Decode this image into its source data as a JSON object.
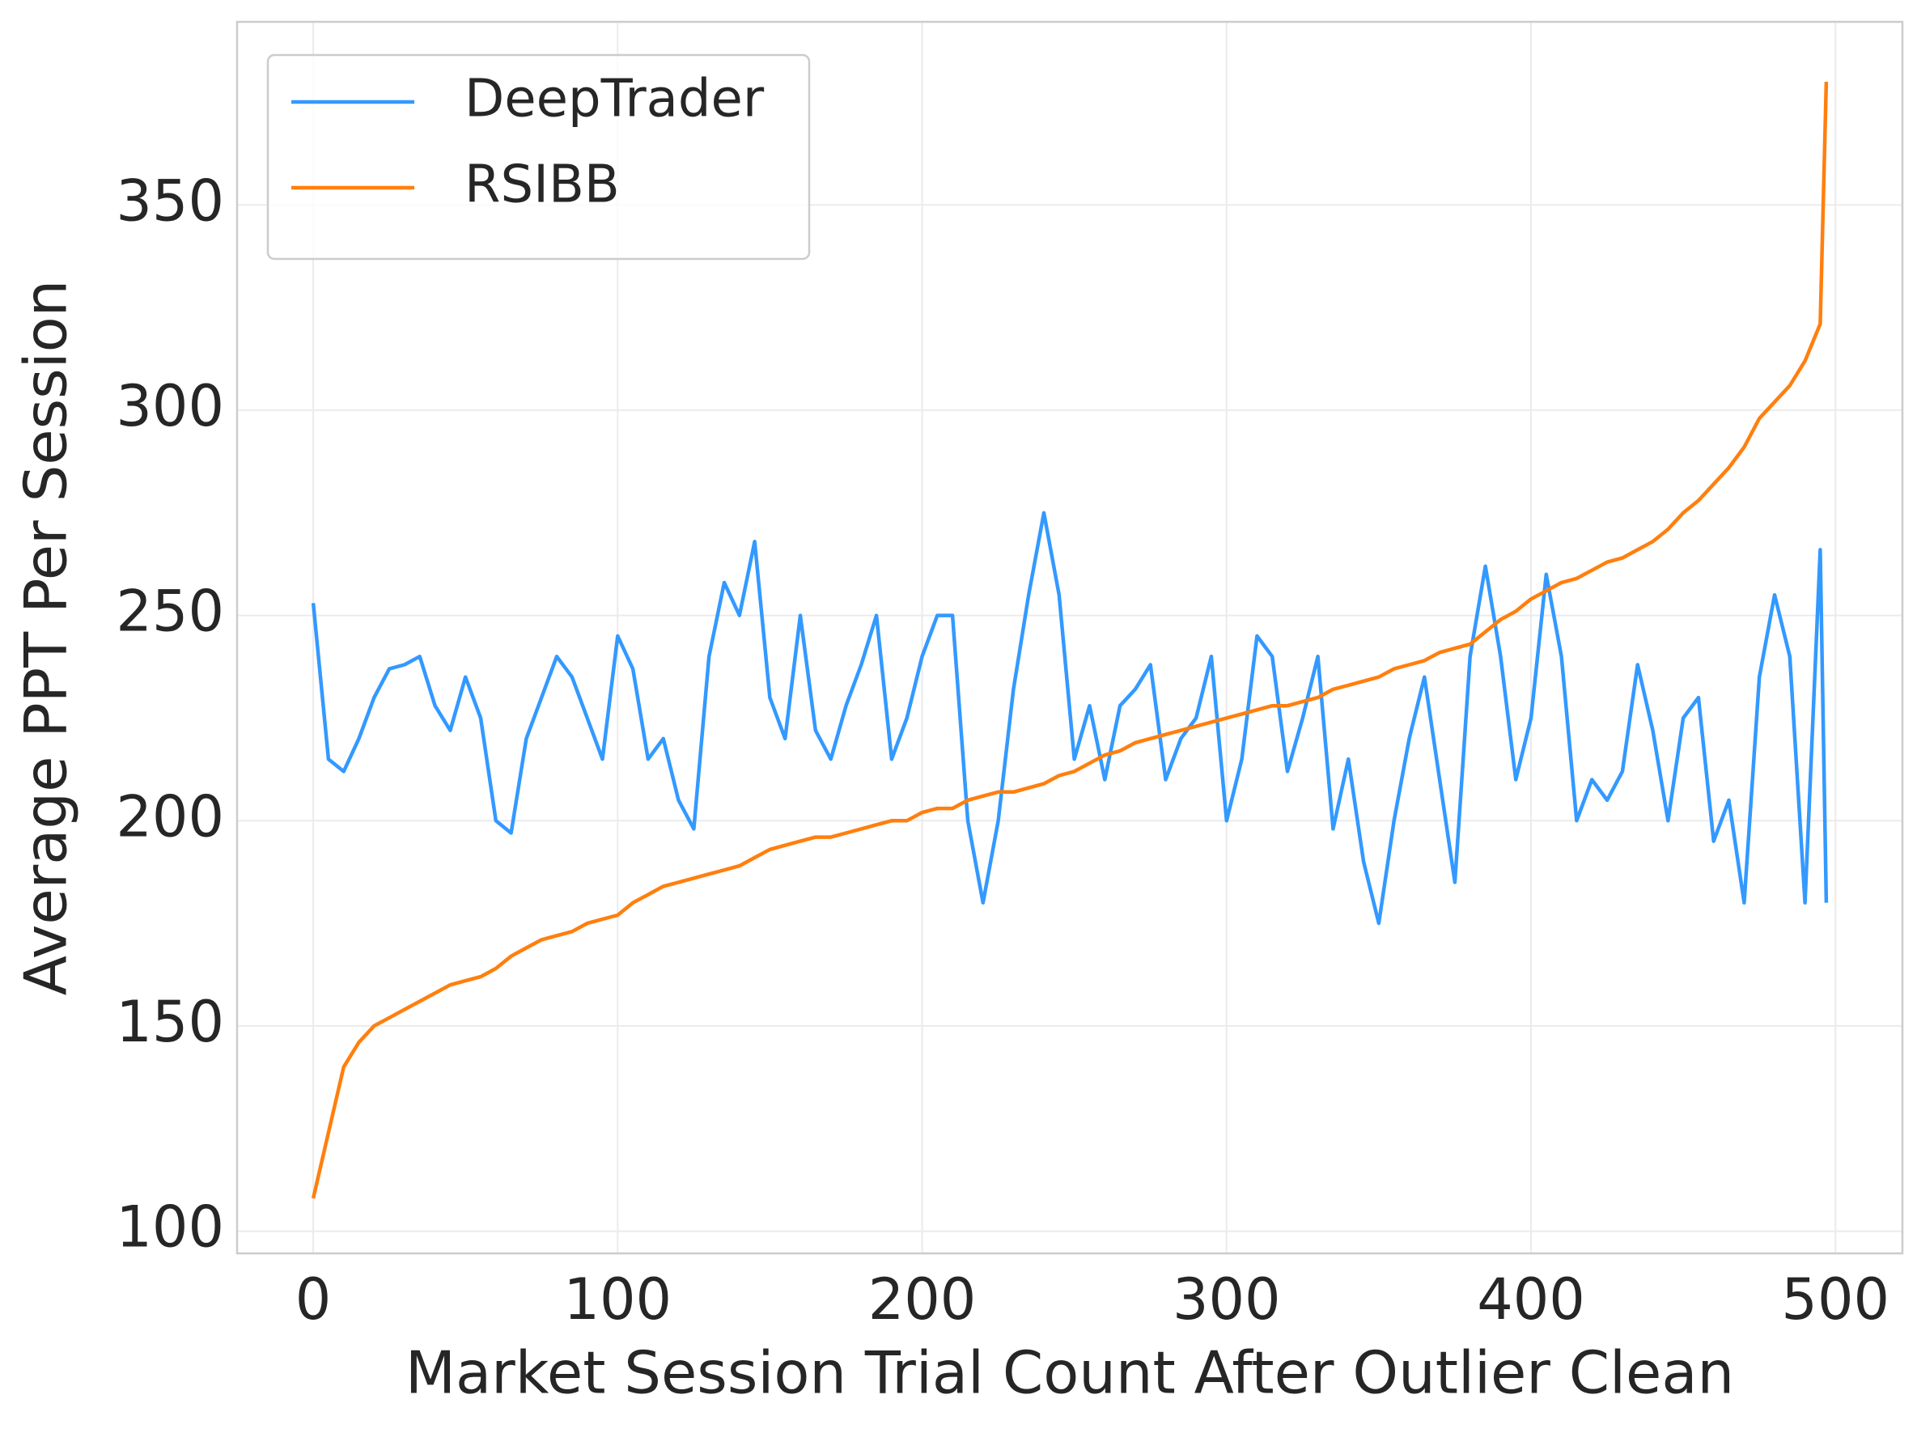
{
  "chart_data": {
    "type": "line",
    "xlabel": "Market Session Trial Count After Outlier Clean",
    "ylabel": "Average PPT Per Session",
    "x": [
      0,
      5,
      10,
      15,
      20,
      25,
      30,
      35,
      40,
      45,
      50,
      55,
      60,
      65,
      70,
      75,
      80,
      85,
      90,
      95,
      100,
      105,
      110,
      115,
      120,
      125,
      130,
      135,
      140,
      145,
      150,
      155,
      160,
      165,
      170,
      175,
      180,
      185,
      190,
      195,
      200,
      205,
      210,
      215,
      220,
      225,
      230,
      235,
      240,
      245,
      250,
      255,
      260,
      265,
      270,
      275,
      280,
      285,
      290,
      295,
      300,
      305,
      310,
      315,
      320,
      325,
      330,
      335,
      340,
      345,
      350,
      355,
      360,
      365,
      370,
      375,
      380,
      385,
      390,
      395,
      400,
      405,
      410,
      415,
      420,
      425,
      430,
      435,
      440,
      445,
      450,
      455,
      460,
      465,
      470,
      475,
      480,
      485,
      490,
      495,
      497
    ],
    "series": [
      {
        "name": "DeepTrader",
        "color": "#3399ff",
        "values": [
          253,
          215,
          212,
          220,
          230,
          237,
          238,
          240,
          228,
          222,
          235,
          225,
          200,
          197,
          220,
          230,
          240,
          235,
          225,
          215,
          245,
          237,
          215,
          220,
          205,
          198,
          240,
          258,
          250,
          268,
          230,
          220,
          250,
          222,
          215,
          228,
          238,
          250,
          215,
          225,
          240,
          250,
          250,
          200,
          180,
          200,
          232,
          255,
          275,
          255,
          215,
          228,
          210,
          228,
          232,
          238,
          210,
          220,
          225,
          240,
          200,
          215,
          245,
          240,
          212,
          225,
          240,
          198,
          215,
          190,
          175,
          200,
          220,
          235,
          210,
          185,
          240,
          262,
          240,
          210,
          225,
          260,
          240,
          200,
          210,
          205,
          212,
          238,
          222,
          200,
          225,
          230,
          195,
          205,
          180,
          235,
          255,
          240,
          180,
          266,
          180
        ]
      },
      {
        "name": "RSIBB",
        "color": "#ff7f0e",
        "values": [
          108,
          124,
          140,
          146,
          150,
          152,
          154,
          156,
          158,
          160,
          161,
          162,
          164,
          167,
          169,
          171,
          172,
          173,
          175,
          176,
          177,
          180,
          182,
          184,
          185,
          186,
          187,
          188,
          189,
          191,
          193,
          194,
          195,
          196,
          196,
          197,
          198,
          199,
          200,
          200,
          202,
          203,
          203,
          205,
          206,
          207,
          207,
          208,
          209,
          211,
          212,
          214,
          216,
          217,
          219,
          220,
          221,
          222,
          223,
          224,
          225,
          226,
          227,
          228,
          228,
          229,
          230,
          232,
          233,
          234,
          235,
          237,
          238,
          239,
          241,
          242,
          243,
          246,
          249,
          251,
          254,
          256,
          258,
          259,
          261,
          263,
          264,
          266,
          268,
          271,
          275,
          278,
          282,
          286,
          291,
          298,
          302,
          306,
          312,
          321,
          380
        ]
      }
    ],
    "xlim": [
      -25,
      522
    ],
    "ylim": [
      94.6,
      394.6
    ],
    "xticks": [
      0,
      100,
      200,
      300,
      400,
      500
    ],
    "yticks": [
      100,
      150,
      200,
      250,
      300,
      350
    ],
    "grid": true,
    "legend": "upper left"
  }
}
